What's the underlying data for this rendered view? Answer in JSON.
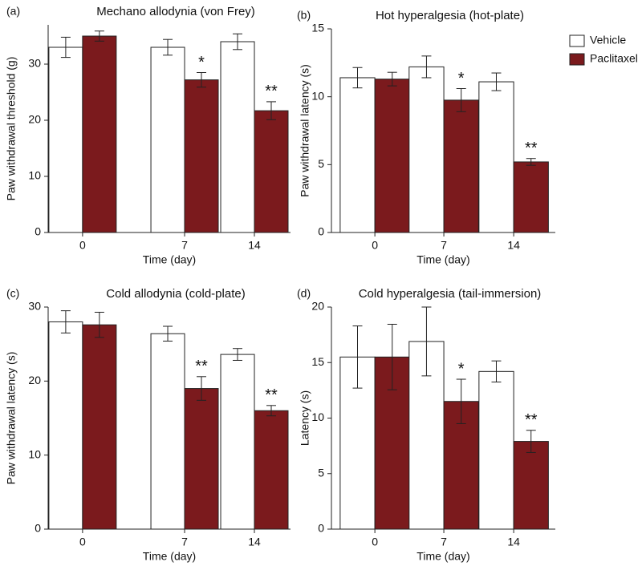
{
  "chart_data": [
    {
      "type": "bar",
      "panel_label": "(a)",
      "title": "Mechano allodynia (von Frey)",
      "x_label": "Time (day)",
      "y_label": "Paw withdrawal threshold (g)",
      "categories": [
        "0",
        "7",
        "14"
      ],
      "ylim": [
        0,
        37
      ],
      "yticks": [
        0,
        10,
        20,
        30
      ],
      "series": [
        {
          "name": "Vehicle",
          "color": "#ffffff",
          "values": [
            33,
            33,
            34
          ],
          "errors": [
            1.8,
            1.4,
            1.4
          ],
          "markers": [
            null,
            null,
            null
          ]
        },
        {
          "name": "Paclitaxel",
          "color": "#7b1a1d",
          "values": [
            35,
            27.2,
            21.7
          ],
          "errors": [
            0.9,
            1.3,
            1.6
          ],
          "markers": [
            null,
            "*",
            "**"
          ]
        }
      ]
    },
    {
      "type": "bar",
      "panel_label": "(b)",
      "title": "Hot hyperalgesia (hot-plate)",
      "x_label": "Time (day)",
      "y_label": "Paw withdrawal latency (s)",
      "categories": [
        "0",
        "7",
        "14"
      ],
      "ylim": [
        0,
        15
      ],
      "yticks": [
        0,
        5,
        10,
        15
      ],
      "legend": "right",
      "series": [
        {
          "name": "Vehicle",
          "color": "#ffffff",
          "values": [
            11.4,
            12.2,
            11.1
          ],
          "errors": [
            0.75,
            0.8,
            0.65
          ],
          "markers": [
            null,
            null,
            null
          ]
        },
        {
          "name": "Paclitaxel",
          "color": "#7b1a1d",
          "values": [
            11.3,
            9.75,
            5.2
          ],
          "errors": [
            0.5,
            0.85,
            0.25
          ],
          "markers": [
            null,
            "*",
            "**"
          ]
        }
      ]
    },
    {
      "type": "bar",
      "panel_label": "(c)",
      "title": "Cold allodynia (cold-plate)",
      "x_label": "Time (day)",
      "y_label": "Paw withdrawal latency (s)",
      "categories": [
        "0",
        "7",
        "14"
      ],
      "ylim": [
        0,
        30
      ],
      "yticks": [
        0,
        10,
        20,
        30
      ],
      "series": [
        {
          "name": "Vehicle",
          "color": "#ffffff",
          "values": [
            28,
            26.4,
            23.6
          ],
          "errors": [
            1.5,
            1.0,
            0.8
          ],
          "markers": [
            null,
            null,
            null
          ]
        },
        {
          "name": "Paclitaxel",
          "color": "#7b1a1d",
          "values": [
            27.6,
            19,
            16
          ],
          "errors": [
            1.7,
            1.6,
            0.7
          ],
          "markers": [
            null,
            "**",
            "**"
          ]
        }
      ]
    },
    {
      "type": "bar",
      "panel_label": "(d)",
      "title": "Cold hyperalgesia (tail-immersion)",
      "x_label": "Time (day)",
      "y_label": "Latency (s)",
      "categories": [
        "0",
        "7",
        "14"
      ],
      "ylim": [
        0,
        20
      ],
      "yticks": [
        0,
        5,
        10,
        15,
        20
      ],
      "series": [
        {
          "name": "Vehicle",
          "color": "#ffffff",
          "values": [
            15.5,
            16.9,
            14.2
          ],
          "errors": [
            2.8,
            3.1,
            0.95
          ],
          "markers": [
            null,
            null,
            null
          ]
        },
        {
          "name": "Paclitaxel",
          "color": "#7b1a1d",
          "values": [
            15.5,
            11.5,
            7.9
          ],
          "errors": [
            2.95,
            2.0,
            1.0
          ],
          "markers": [
            null,
            "*",
            "**"
          ]
        }
      ]
    }
  ]
}
